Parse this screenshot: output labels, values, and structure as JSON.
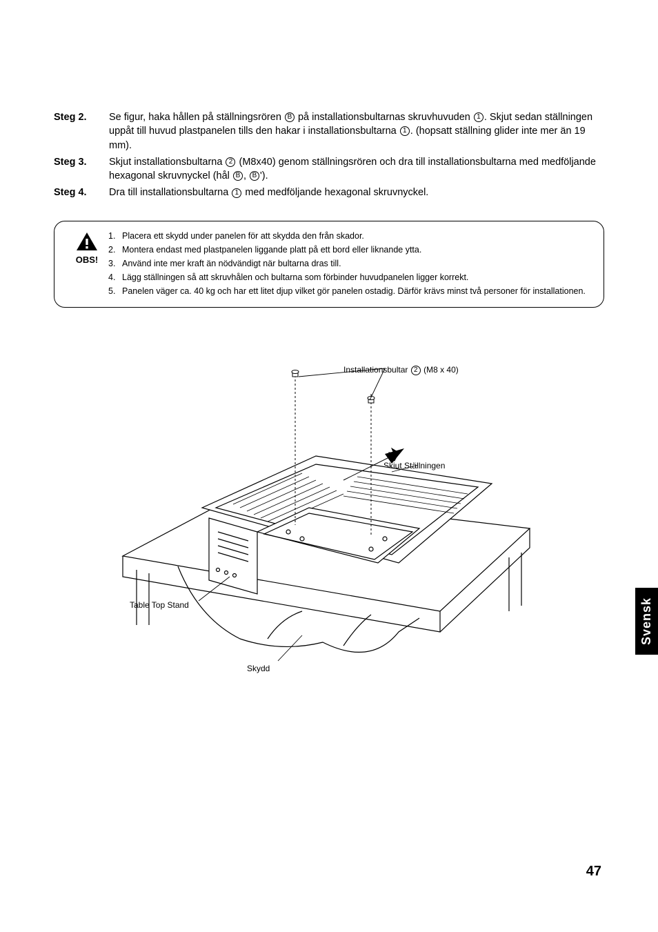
{
  "steps": [
    {
      "label": "Steg 2.",
      "text_parts": [
        "Se figur, haka hållen på ställningsrören ",
        {
          "circ": "B"
        },
        " på installationsbultarnas skruvhuvuden ",
        {
          "circ": "1"
        },
        ". Skjut sedan ställningen uppåt till huvud plastpanelen tills den hakar i installationsbultarna ",
        {
          "circ": "1"
        },
        ". (hopsatt ställning glider inte mer än 19 mm)."
      ]
    },
    {
      "label": "Steg 3.",
      "text_parts": [
        "Skjut installationsbultarna ",
        {
          "circ": "2"
        },
        " (M8x40) genom ställningsrören och dra till installationsbultarna med medföljande hexagonal skruvnyckel (hål ",
        {
          "circ": "B"
        },
        ", ",
        {
          "circ": "B"
        },
        "')."
      ]
    },
    {
      "label": "Steg 4.",
      "text_parts": [
        "Dra till installationsbultarna ",
        {
          "circ": "1"
        },
        " med medföljande hexagonal skruvnyckel."
      ]
    }
  ],
  "caution": {
    "label": "OBS!",
    "items": [
      "Placera ett skydd under panelen för att skydda den från skador.",
      "Montera endast med plastpanelen liggande platt på ett bord eller liknande ytta.",
      "Använd inte mer kraft än nödvändigt när bultarna dras till.",
      "Lägg ställningen så att skruvhålen och bultarna som förbinder huvudpanelen ligger korrekt.",
      "Panelen väger ca. 40 kg och har ett litet djup vilket gör panelen ostadig. Därför krävs minst två personer för installationen."
    ]
  },
  "diagram_labels": {
    "bolts": "Installationsbultar",
    "bolts_circ": "2",
    "bolts_spec": "(M8 x 40)",
    "slide": "Skjut Ställningen",
    "stand": "Table Top Stand",
    "cover": "Skydd"
  },
  "side_tab": "Svensk",
  "page_number": "47",
  "colors": {
    "text": "#000000",
    "background": "#ffffff",
    "tab_bg": "#000000",
    "tab_fg": "#ffffff"
  }
}
